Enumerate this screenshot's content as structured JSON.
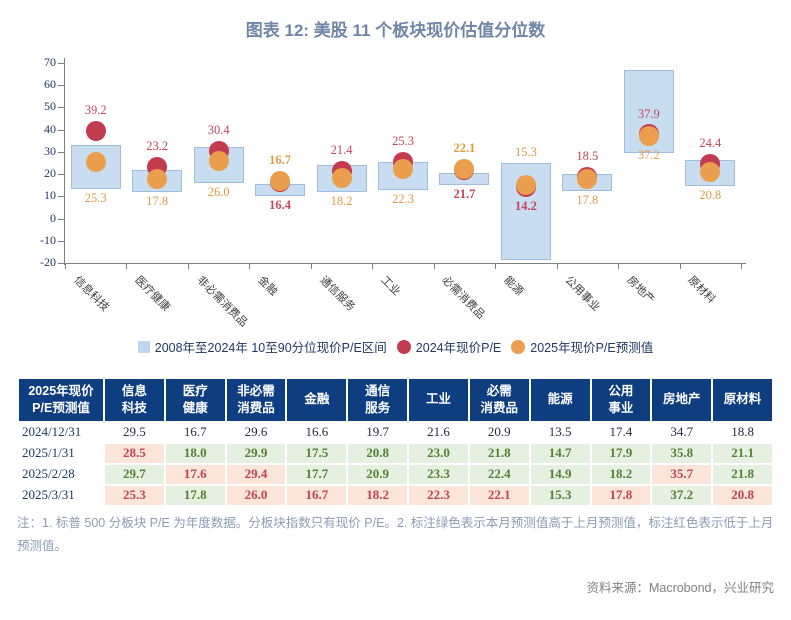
{
  "title": "图表 12: 美股 11 个板块现价估值分位数",
  "chart_data": {
    "type": "bar",
    "subtype": "floating-range-bars-with-point-markers",
    "title": "图表 12: 美股 11 个板块现价估值分位数",
    "categories": [
      "信息科技",
      "医疗健康",
      "非必需消费品",
      "金融",
      "通信服务",
      "工业",
      "必需消费品",
      "能源",
      "公用事业",
      "房地产",
      "原材料"
    ],
    "ylim": [
      -20,
      70
    ],
    "ytick_step": 10,
    "grid": false,
    "legend_position": "bottom",
    "range_series": {
      "name": "2008年至2024年 10至90分位现价P/E区间",
      "low": [
        13.5,
        12,
        16,
        10,
        12,
        13,
        15,
        -18.5,
        12.5,
        29.5,
        14.5
      ],
      "high": [
        33,
        22,
        32,
        15.5,
        24,
        25.5,
        20.5,
        25,
        20,
        67,
        26.5
      ]
    },
    "point_series": [
      {
        "name": "2024年现价P/E",
        "values": [
          39.2,
          23.2,
          30.4,
          16.4,
          21.4,
          25.3,
          21.7,
          14.2,
          18.5,
          37.9,
          24.4
        ],
        "labels": [
          "39.2",
          "23.2",
          "30.4",
          "16.4",
          "21.4",
          "25.3",
          "21.7",
          "14.2",
          "18.5",
          "37.9",
          "24.4"
        ],
        "label_pos": [
          "above",
          "above",
          "above",
          "below",
          "above",
          "above",
          "below",
          "below_dot",
          "above",
          "above_dot",
          "above"
        ],
        "label_bold": [
          false,
          false,
          false,
          true,
          false,
          false,
          true,
          true,
          false,
          false,
          false
        ]
      },
      {
        "name": "2025年现价P/E预测值",
        "values": [
          25.3,
          17.8,
          26.0,
          16.7,
          18.2,
          22.3,
          22.1,
          15.3,
          17.8,
          37.2,
          20.8
        ],
        "labels": [
          "25.3",
          "17.8",
          "26.0",
          "16.7",
          "18.2",
          "22.3",
          "22.1",
          "15.3",
          "17.8",
          "37.2",
          "20.8"
        ],
        "label_pos": [
          "below",
          "below",
          "below",
          "above",
          "below",
          "below",
          "above",
          "above",
          "below",
          "below_dot",
          "below"
        ],
        "label_bold": [
          false,
          false,
          false,
          true,
          false,
          false,
          true,
          false,
          false,
          false,
          false
        ]
      }
    ]
  },
  "table": {
    "header_col1": [
      "2025年现价",
      "P/E预测值"
    ],
    "columns": [
      [
        "信息",
        "科技"
      ],
      [
        "医疗",
        "健康"
      ],
      [
        "非必需",
        "消费品"
      ],
      [
        "金融"
      ],
      [
        "通信",
        "服务"
      ],
      [
        "工业"
      ],
      [
        "必需",
        "消费品"
      ],
      [
        "能源"
      ],
      [
        "公用",
        "事业"
      ],
      [
        "房地产"
      ],
      [
        "原材料"
      ]
    ],
    "rows": [
      {
        "date": "2024/12/31",
        "values": [
          "29.5",
          "16.7",
          "29.6",
          "16.6",
          "19.7",
          "21.6",
          "20.9",
          "13.5",
          "17.4",
          "34.7",
          "18.8"
        ],
        "marks": [
          "none",
          "none",
          "none",
          "none",
          "none",
          "none",
          "none",
          "none",
          "none",
          "none",
          "none"
        ]
      },
      {
        "date": "2025/1/31",
        "values": [
          "28.5",
          "18.0",
          "29.9",
          "17.5",
          "20.8",
          "23.0",
          "21.8",
          "14.7",
          "17.9",
          "35.8",
          "21.1"
        ],
        "marks": [
          "red",
          "green",
          "green",
          "green",
          "green",
          "green",
          "green",
          "green",
          "green",
          "green",
          "green"
        ]
      },
      {
        "date": "2025/2/28",
        "values": [
          "29.7",
          "17.6",
          "29.4",
          "17.7",
          "20.9",
          "23.3",
          "22.4",
          "14.9",
          "18.2",
          "35.7",
          "21.8"
        ],
        "marks": [
          "green",
          "red",
          "red",
          "green",
          "green",
          "green",
          "green",
          "green",
          "green",
          "red",
          "green"
        ]
      },
      {
        "date": "2025/3/31",
        "values": [
          "25.3",
          "17.8",
          "26.0",
          "16.7",
          "18.2",
          "22.3",
          "22.1",
          "15.3",
          "17.8",
          "37.2",
          "20.8"
        ],
        "marks": [
          "red",
          "green",
          "red",
          "red",
          "red",
          "red",
          "red",
          "green",
          "red",
          "green",
          "red"
        ]
      }
    ]
  },
  "notes": "注：1. 标普 500 分板块 P/E 为年度数据。分板块指数只有现价 P/E。2. 标注绿色表示本月预测值高于上月预测值，标注红色表示低于上月预测值。",
  "source": "资料来源：Macrobond，兴业研究",
  "colors": {
    "title": "#6E87A7",
    "bar_fill": "#C9DDF1",
    "bar_border": "#9FBEDF",
    "dot_2024": "#C23B4F",
    "dot_2025": "#EB9E4D",
    "label_2024": "#C2485C",
    "label_2025": "#DE9A44",
    "axis": "#7F7F7F",
    "tick_label": "#1F3864",
    "sector_label": "#3A3A3A",
    "legend_square": "#BDD7EE",
    "legend_text": "#1F3864",
    "header_bg": "#0E3D80",
    "header_text": "#FFFFFF",
    "date_text": "#17375E",
    "value_text": "#1F2A44",
    "green_bg": "#E5F0E0",
    "green_text": "#538135",
    "red_bg": "#FBE5D8",
    "red_text": "#C0415A",
    "notes_text": "#8C9CB4",
    "source_text": "#808080"
  }
}
